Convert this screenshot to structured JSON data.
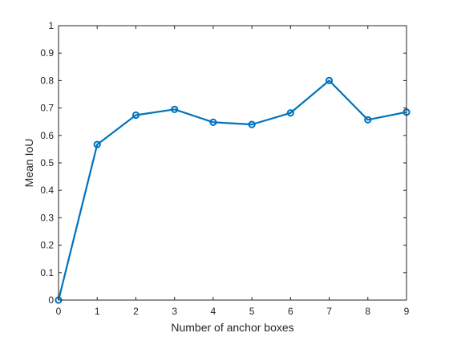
{
  "chart_data": {
    "type": "line",
    "title": "",
    "xlabel": "Number of anchor boxes",
    "ylabel": "Mean IoU",
    "xlim": [
      0,
      9
    ],
    "ylim": [
      0,
      1
    ],
    "xticks": [
      0,
      1,
      2,
      3,
      4,
      5,
      6,
      7,
      8,
      9
    ],
    "yticks": [
      0,
      0.1,
      0.2,
      0.3,
      0.4,
      0.5,
      0.6,
      0.7,
      0.8,
      0.9,
      1
    ],
    "xtick_labels": [
      "0",
      "1",
      "2",
      "3",
      "4",
      "5",
      "6",
      "7",
      "8",
      "9"
    ],
    "ytick_labels": [
      "0",
      "0.1",
      "0.2",
      "0.3",
      "0.4",
      "0.5",
      "0.6",
      "0.7",
      "0.8",
      "0.9",
      "1"
    ],
    "grid": false,
    "box": true,
    "series": [
      {
        "x": [
          0,
          1,
          2,
          3,
          4,
          5,
          6,
          7,
          8,
          9
        ],
        "y": [
          0,
          0.567,
          0.674,
          0.695,
          0.648,
          0.64,
          0.682,
          0.8,
          0.657,
          0.685
        ],
        "color": "#0072BD",
        "marker": "circle",
        "line_style": "solid"
      }
    ]
  }
}
